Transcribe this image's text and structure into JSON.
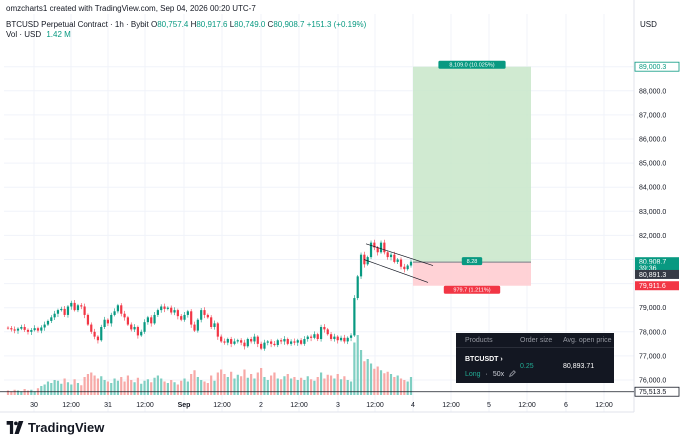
{
  "header": {
    "created_by": "omzcharts1 created with TradingView.com, Sep 04, 2026 00:20 UTC-7",
    "symbol": "BTCUSD Perpetual Contract · 1h · Bybit",
    "ohlc": {
      "o_label": "O",
      "o": "80,757.4",
      "h_label": "H",
      "h": "80,917.6",
      "l_label": "L",
      "l": "80,749.0",
      "c_label": "C",
      "c": "80,908.7",
      "change": "+151.3 (+0.19%)"
    },
    "volume_label": "Vol · USD",
    "volume_value": "1.42 M"
  },
  "currency": "USD",
  "price_tags": [
    {
      "text": "89,000.3",
      "color": "#089981",
      "filled": false,
      "price": 89000.3
    },
    {
      "text": "80,908.7",
      "color": "#089981",
      "filled": true,
      "price": 80908.7
    },
    {
      "text": "39:36",
      "color": "#089981",
      "filled": true,
      "price": 80640
    },
    {
      "text": "80,891.3",
      "color": "#363a45",
      "filled": true,
      "price": 80380
    },
    {
      "text": "79,911.6",
      "color": "#f23645",
      "filled": true,
      "price": 79911.6
    },
    {
      "text": "75,513.5",
      "color": "#131722",
      "filled": false,
      "price": 75513.5
    }
  ],
  "position": {
    "target_label": "8,109.0 (10.025%)",
    "entry_label": "8.28",
    "stop_label": "979.7 (1.211%)",
    "target": 89000.3,
    "entry": 80891.3,
    "stop": 79911.6,
    "profit_color": "#c8e6c9",
    "loss_color": "#ffcdd2"
  },
  "panel": {
    "col_products": "Products",
    "col_order_size": "Order size",
    "col_avg_price": "Avg. open price",
    "symbol": "BTCUSDT",
    "chevron": "›",
    "side": "Long",
    "dot": "·",
    "leverage": "50x",
    "edit_icon": "pencil-icon",
    "order_size": "0.25",
    "avg_price": "80,893.71"
  },
  "brand": {
    "name": "TradingView",
    "logo_icon": "tradingview-logo-icon"
  },
  "chart_data": {
    "type": "candlestick",
    "symbol": "BTCUSD",
    "interval": "1h",
    "y_axis": {
      "side": "right",
      "ticks": [
        89000,
        88000,
        87000,
        86000,
        85000,
        84000,
        83000,
        82000,
        81000,
        80000,
        79000,
        78000,
        77000,
        76000
      ],
      "tick_labels": [
        "89,000.0",
        "88,000.0",
        "87,000.0",
        "86,000.0",
        "85,000.0",
        "84,000.0",
        "83,000.0",
        "82,000.0",
        "81,000.0",
        "80,000.0",
        "79,000.0",
        "78,000.0",
        "77,000.0",
        "76,000.0"
      ],
      "range": [
        75200,
        90700
      ]
    },
    "x_axis": {
      "tick_labels": [
        "30",
        "12:00",
        "31",
        "12:00",
        "Sep",
        "12:00",
        "2",
        "12:00",
        "3",
        "12:00",
        "4",
        "12:00",
        "5",
        "12:00",
        "6",
        "12:00"
      ],
      "bold": [
        false,
        false,
        false,
        false,
        true,
        false,
        false,
        false,
        false,
        false,
        false,
        false,
        false,
        false,
        false,
        false
      ]
    },
    "grid": true,
    "up_color": "#089981",
    "down_color": "#f23645",
    "closes": [
      78150,
      78100,
      78050,
      78130,
      78200,
      78080,
      78000,
      78070,
      78150,
      78050,
      78180,
      78300,
      78450,
      78600,
      78750,
      78900,
      78950,
      78700,
      79050,
      79200,
      78900,
      79100,
      79050,
      78700,
      78300,
      78000,
      77800,
      77650,
      78200,
      78500,
      78350,
      78700,
      78850,
      79100,
      78750,
      78600,
      78300,
      78100,
      78200,
      77850,
      78000,
      78400,
      78600,
      78350,
      78700,
      78900,
      79050,
      78950,
      79000,
      78800,
      78900,
      78650,
      78500,
      78700,
      78850,
      78300,
      78050,
      78500,
      78900,
      78700,
      78600,
      78200,
      78350,
      77800,
      77600,
      77550,
      77700,
      77500,
      77600,
      77650,
      77550,
      77400,
      77700,
      77600,
      77800,
      77500,
      77300,
      77550,
      77600,
      77500,
      77450,
      77650,
      77600,
      77700,
      77500,
      77600,
      77550,
      77650,
      77500,
      77700,
      77800,
      77750,
      77900,
      77700,
      78200,
      78100,
      77900,
      77700,
      77800,
      77650,
      77750,
      77600,
      77750,
      77850,
      79400,
      80300,
      81200,
      80800,
      81100,
      81700,
      81500,
      81300,
      81700,
      81300,
      81100,
      81200,
      80900,
      81000,
      80700,
      80600,
      80750,
      80908
    ],
    "volumes": [
      6,
      5,
      7,
      6,
      5,
      8,
      6,
      7,
      5,
      9,
      12,
      14,
      18,
      16,
      20,
      19,
      15,
      22,
      17,
      14,
      21,
      16,
      13,
      24,
      28,
      30,
      26,
      22,
      25,
      20,
      18,
      16,
      22,
      19,
      24,
      18,
      26,
      20,
      17,
      23,
      15,
      19,
      21,
      17,
      23,
      26,
      22,
      18,
      16,
      20,
      17,
      14,
      19,
      22,
      18,
      28,
      33,
      24,
      20,
      18,
      16,
      26,
      19,
      30,
      34,
      28,
      24,
      31,
      22,
      27,
      25,
      34,
      23,
      28,
      22,
      30,
      36,
      24,
      20,
      26,
      30,
      22,
      21,
      25,
      28,
      22,
      24,
      20,
      23,
      20,
      25,
      21,
      19,
      24,
      30,
      22,
      27,
      26,
      22,
      28,
      21,
      25,
      20,
      18,
      70,
      80,
      60,
      45,
      48,
      42,
      35,
      38,
      33,
      29,
      31,
      28,
      24,
      26,
      22,
      20,
      18,
      24
    ]
  }
}
